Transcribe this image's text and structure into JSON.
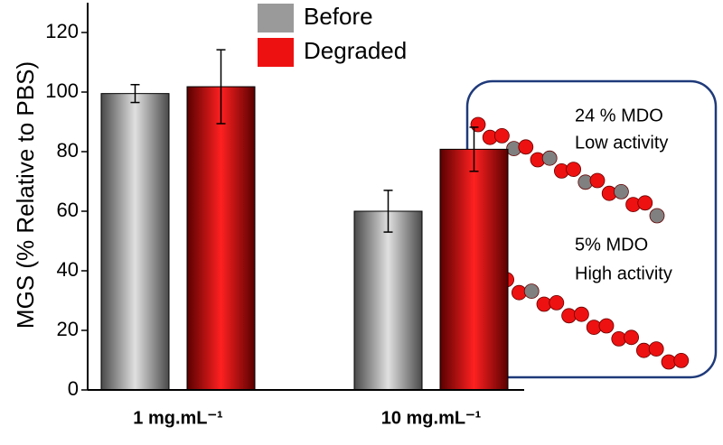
{
  "chart_data": {
    "type": "bar",
    "ylabel": "MGS (% Relative to PBS)",
    "categories": [
      "1 mg.mL⁻¹",
      "10 mg.mL⁻¹"
    ],
    "series": [
      {
        "name": "Before",
        "color": "#9a9a9a",
        "values": [
          99.5,
          60
        ],
        "errors": [
          3,
          7
        ]
      },
      {
        "name": "Degraded",
        "color": "#ee1111",
        "values": [
          101.8,
          80.8
        ],
        "errors": [
          12.4,
          7.4
        ]
      }
    ],
    "ylim": [
      0,
      130
    ],
    "yticks": [
      0,
      20,
      40,
      60,
      80,
      100,
      120
    ],
    "legend": "top",
    "inset": {
      "groups": [
        {
          "title": "24 % MDO",
          "subtitle": "Low activity"
        },
        {
          "title": "5% MDO",
          "subtitle": "High activity"
        }
      ]
    }
  }
}
